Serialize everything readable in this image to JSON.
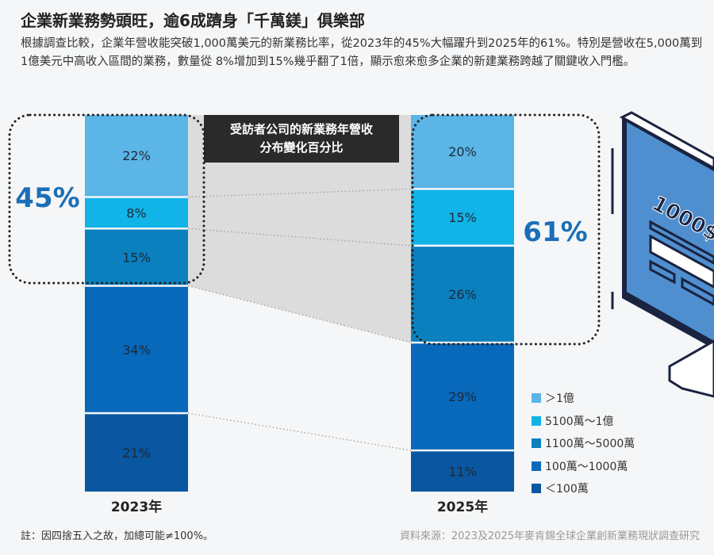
{
  "header": {
    "title": "企業新業務勢頭旺，逾6成躋身「千萬鎂」俱樂部",
    "description": "根據調查比較，企業年營收能突破1,000萬美元的新業務比率，從2023年的45%大幅躍升到2025年的61%。特別是營收在5,000萬到1億美元中高收入區間的業務，數量從 8%增加到15%幾乎翻了1倍，顯示愈來愈多企業的新建業務跨越了關鍵收入門檻。"
  },
  "chart_data": {
    "type": "bar",
    "stacked": true,
    "title": "受訪者公司的新業務年營收分布變化百分比",
    "title_lines": [
      "受訪者公司的新業務年營收",
      "分布變化百分比"
    ],
    "categories": [
      "2023年",
      "2025年"
    ],
    "series": [
      {
        "name": "＞1億",
        "values": [
          22,
          20
        ],
        "color": "#5bb5e6"
      },
      {
        "name": "5100萬～1億",
        "values": [
          8,
          15
        ],
        "color": "#12b4e8"
      },
      {
        "name": "1100萬～5000萬",
        "values": [
          15,
          26
        ],
        "color": "#0a80bf"
      },
      {
        "name": "100萬～1000萬",
        "values": [
          34,
          29
        ],
        "color": "#0868ba"
      },
      {
        "name": "＜100萬",
        "values": [
          21,
          11
        ],
        "color": "#0a56a0"
      }
    ],
    "data_labels": [
      [
        "22%",
        "8%",
        "15%",
        "34%",
        "21%"
      ],
      [
        "20%",
        "15%",
        "26%",
        "29%",
        "11%"
      ]
    ],
    "highlights": [
      "45%",
      "61%"
    ],
    "highlight_color": "#1b6fb8",
    "legend_position": "bottom-right",
    "illustration_text": "1000$"
  },
  "footer": {
    "note": "註：因四捨五入之故，加總可能≠100%。",
    "source": "資料來源：2023及2025年麥肯錫全球企業創新業務現狀調查研究"
  }
}
